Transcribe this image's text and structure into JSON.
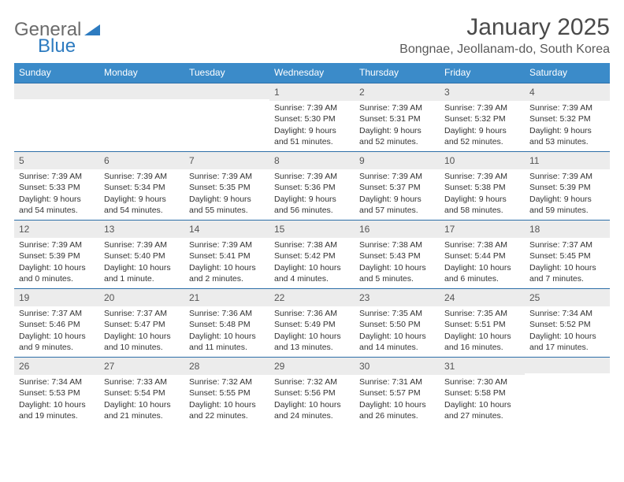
{
  "brand": {
    "text1": "General",
    "text2": "Blue",
    "text_color": "#6b6b6b",
    "accent_color": "#2d7bc0"
  },
  "title": "January 2025",
  "location": "Bongnae, Jeollanam-do, South Korea",
  "colors": {
    "header_bg": "#3b8bc9",
    "header_text": "#ffffff",
    "week_divider": "#2d6fa8",
    "daynum_bg": "#ececec",
    "daynum_text": "#555555",
    "body_text": "#333333",
    "title_text": "#4a4a4a"
  },
  "dow": [
    "Sunday",
    "Monday",
    "Tuesday",
    "Wednesday",
    "Thursday",
    "Friday",
    "Saturday"
  ],
  "weeks": [
    [
      null,
      null,
      null,
      {
        "n": "1",
        "sr": "Sunrise: 7:39 AM",
        "ss": "Sunset: 5:30 PM",
        "d1": "Daylight: 9 hours",
        "d2": "and 51 minutes."
      },
      {
        "n": "2",
        "sr": "Sunrise: 7:39 AM",
        "ss": "Sunset: 5:31 PM",
        "d1": "Daylight: 9 hours",
        "d2": "and 52 minutes."
      },
      {
        "n": "3",
        "sr": "Sunrise: 7:39 AM",
        "ss": "Sunset: 5:32 PM",
        "d1": "Daylight: 9 hours",
        "d2": "and 52 minutes."
      },
      {
        "n": "4",
        "sr": "Sunrise: 7:39 AM",
        "ss": "Sunset: 5:32 PM",
        "d1": "Daylight: 9 hours",
        "d2": "and 53 minutes."
      }
    ],
    [
      {
        "n": "5",
        "sr": "Sunrise: 7:39 AM",
        "ss": "Sunset: 5:33 PM",
        "d1": "Daylight: 9 hours",
        "d2": "and 54 minutes."
      },
      {
        "n": "6",
        "sr": "Sunrise: 7:39 AM",
        "ss": "Sunset: 5:34 PM",
        "d1": "Daylight: 9 hours",
        "d2": "and 54 minutes."
      },
      {
        "n": "7",
        "sr": "Sunrise: 7:39 AM",
        "ss": "Sunset: 5:35 PM",
        "d1": "Daylight: 9 hours",
        "d2": "and 55 minutes."
      },
      {
        "n": "8",
        "sr": "Sunrise: 7:39 AM",
        "ss": "Sunset: 5:36 PM",
        "d1": "Daylight: 9 hours",
        "d2": "and 56 minutes."
      },
      {
        "n": "9",
        "sr": "Sunrise: 7:39 AM",
        "ss": "Sunset: 5:37 PM",
        "d1": "Daylight: 9 hours",
        "d2": "and 57 minutes."
      },
      {
        "n": "10",
        "sr": "Sunrise: 7:39 AM",
        "ss": "Sunset: 5:38 PM",
        "d1": "Daylight: 9 hours",
        "d2": "and 58 minutes."
      },
      {
        "n": "11",
        "sr": "Sunrise: 7:39 AM",
        "ss": "Sunset: 5:39 PM",
        "d1": "Daylight: 9 hours",
        "d2": "and 59 minutes."
      }
    ],
    [
      {
        "n": "12",
        "sr": "Sunrise: 7:39 AM",
        "ss": "Sunset: 5:39 PM",
        "d1": "Daylight: 10 hours",
        "d2": "and 0 minutes."
      },
      {
        "n": "13",
        "sr": "Sunrise: 7:39 AM",
        "ss": "Sunset: 5:40 PM",
        "d1": "Daylight: 10 hours",
        "d2": "and 1 minute."
      },
      {
        "n": "14",
        "sr": "Sunrise: 7:39 AM",
        "ss": "Sunset: 5:41 PM",
        "d1": "Daylight: 10 hours",
        "d2": "and 2 minutes."
      },
      {
        "n": "15",
        "sr": "Sunrise: 7:38 AM",
        "ss": "Sunset: 5:42 PM",
        "d1": "Daylight: 10 hours",
        "d2": "and 4 minutes."
      },
      {
        "n": "16",
        "sr": "Sunrise: 7:38 AM",
        "ss": "Sunset: 5:43 PM",
        "d1": "Daylight: 10 hours",
        "d2": "and 5 minutes."
      },
      {
        "n": "17",
        "sr": "Sunrise: 7:38 AM",
        "ss": "Sunset: 5:44 PM",
        "d1": "Daylight: 10 hours",
        "d2": "and 6 minutes."
      },
      {
        "n": "18",
        "sr": "Sunrise: 7:37 AM",
        "ss": "Sunset: 5:45 PM",
        "d1": "Daylight: 10 hours",
        "d2": "and 7 minutes."
      }
    ],
    [
      {
        "n": "19",
        "sr": "Sunrise: 7:37 AM",
        "ss": "Sunset: 5:46 PM",
        "d1": "Daylight: 10 hours",
        "d2": "and 9 minutes."
      },
      {
        "n": "20",
        "sr": "Sunrise: 7:37 AM",
        "ss": "Sunset: 5:47 PM",
        "d1": "Daylight: 10 hours",
        "d2": "and 10 minutes."
      },
      {
        "n": "21",
        "sr": "Sunrise: 7:36 AM",
        "ss": "Sunset: 5:48 PM",
        "d1": "Daylight: 10 hours",
        "d2": "and 11 minutes."
      },
      {
        "n": "22",
        "sr": "Sunrise: 7:36 AM",
        "ss": "Sunset: 5:49 PM",
        "d1": "Daylight: 10 hours",
        "d2": "and 13 minutes."
      },
      {
        "n": "23",
        "sr": "Sunrise: 7:35 AM",
        "ss": "Sunset: 5:50 PM",
        "d1": "Daylight: 10 hours",
        "d2": "and 14 minutes."
      },
      {
        "n": "24",
        "sr": "Sunrise: 7:35 AM",
        "ss": "Sunset: 5:51 PM",
        "d1": "Daylight: 10 hours",
        "d2": "and 16 minutes."
      },
      {
        "n": "25",
        "sr": "Sunrise: 7:34 AM",
        "ss": "Sunset: 5:52 PM",
        "d1": "Daylight: 10 hours",
        "d2": "and 17 minutes."
      }
    ],
    [
      {
        "n": "26",
        "sr": "Sunrise: 7:34 AM",
        "ss": "Sunset: 5:53 PM",
        "d1": "Daylight: 10 hours",
        "d2": "and 19 minutes."
      },
      {
        "n": "27",
        "sr": "Sunrise: 7:33 AM",
        "ss": "Sunset: 5:54 PM",
        "d1": "Daylight: 10 hours",
        "d2": "and 21 minutes."
      },
      {
        "n": "28",
        "sr": "Sunrise: 7:32 AM",
        "ss": "Sunset: 5:55 PM",
        "d1": "Daylight: 10 hours",
        "d2": "and 22 minutes."
      },
      {
        "n": "29",
        "sr": "Sunrise: 7:32 AM",
        "ss": "Sunset: 5:56 PM",
        "d1": "Daylight: 10 hours",
        "d2": "and 24 minutes."
      },
      {
        "n": "30",
        "sr": "Sunrise: 7:31 AM",
        "ss": "Sunset: 5:57 PM",
        "d1": "Daylight: 10 hours",
        "d2": "and 26 minutes."
      },
      {
        "n": "31",
        "sr": "Sunrise: 7:30 AM",
        "ss": "Sunset: 5:58 PM",
        "d1": "Daylight: 10 hours",
        "d2": "and 27 minutes."
      },
      null
    ]
  ]
}
